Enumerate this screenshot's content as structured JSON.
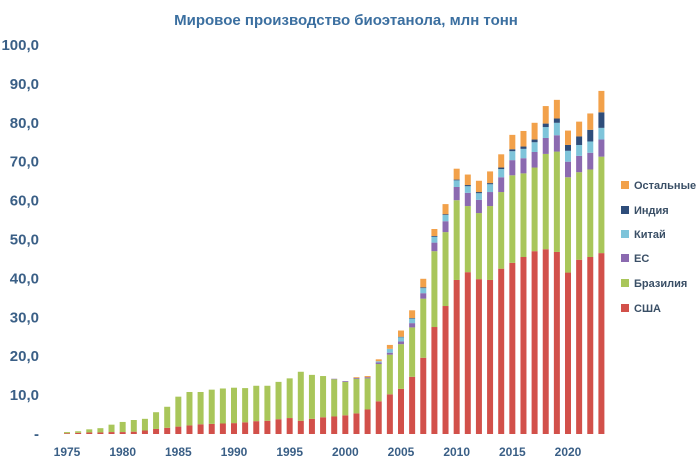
{
  "chart_data": {
    "type": "bar",
    "stacked": true,
    "title": "Мировое производство биоэтанола, млн тонн",
    "xlabel": "",
    "ylabel": "",
    "ylim": [
      0,
      100
    ],
    "ytick_labels": [
      "-",
      "10,0",
      "20,0",
      "30,0",
      "40,0",
      "50,0",
      "60,0",
      "70,0",
      "80,0",
      "90,0",
      "100,0"
    ],
    "ytick_values": [
      0,
      10,
      20,
      30,
      40,
      50,
      60,
      70,
      80,
      90,
      100
    ],
    "xtick_labels": [
      "1975",
      "1980",
      "1985",
      "1990",
      "1995",
      "2000",
      "2005",
      "2010",
      "2015",
      "2020"
    ],
    "xtick_values": [
      1975,
      1980,
      1985,
      1990,
      1995,
      2000,
      2005,
      2010,
      2015,
      2020
    ],
    "legend_position": "right",
    "grid": false,
    "x": [
      1975,
      1976,
      1977,
      1978,
      1979,
      1980,
      1981,
      1982,
      1983,
      1984,
      1985,
      1986,
      1987,
      1988,
      1989,
      1990,
      1991,
      1992,
      1993,
      1994,
      1995,
      1996,
      1997,
      1998,
      1999,
      2000,
      2001,
      2002,
      2003,
      2004,
      2005,
      2006,
      2007,
      2008,
      2009,
      2010,
      2011,
      2012,
      2013,
      2014,
      2015,
      2016,
      2017,
      2018,
      2019,
      2020,
      2021,
      2022,
      2023
    ],
    "series": [
      {
        "name": "США",
        "color": "#d2504a",
        "values": [
          0.2,
          0.3,
          0.4,
          0.4,
          0.5,
          0.5,
          0.6,
          0.9,
          1.3,
          1.6,
          1.9,
          2.2,
          2.5,
          2.6,
          2.7,
          2.8,
          3.0,
          3.3,
          3.4,
          3.8,
          4.1,
          3.4,
          3.9,
          4.3,
          4.5,
          4.8,
          5.3,
          6.3,
          8.4,
          10.2,
          11.6,
          14.7,
          19.6,
          27.5,
          32.9,
          39.6,
          41.6,
          39.8,
          39.6,
          42.5,
          44.0,
          45.5,
          47.0,
          47.5,
          46.8,
          41.5,
          44.8,
          45.5,
          46.5
        ]
      },
      {
        "name": "Бразилия",
        "color": "#a9c65a",
        "values": [
          0.3,
          0.4,
          0.8,
          1.1,
          1.9,
          2.6,
          3.0,
          3.0,
          4.3,
          5.4,
          7.7,
          8.6,
          8.3,
          8.8,
          9.0,
          9.1,
          8.8,
          9.1,
          9.0,
          9.6,
          10.2,
          12.6,
          11.3,
          10.6,
          9.6,
          8.6,
          8.9,
          8.0,
          9.6,
          10.2,
          11.5,
          12.7,
          15.2,
          19.5,
          19.0,
          20.5,
          17.0,
          17.0,
          19.0,
          19.7,
          22.5,
          21.5,
          21.5,
          24.5,
          25.8,
          24.5,
          22.5,
          22.5,
          24.8
        ]
      },
      {
        "name": "ЕС",
        "color": "#8b6ab0",
        "values": [
          0,
          0,
          0,
          0,
          0,
          0,
          0,
          0,
          0,
          0,
          0,
          0,
          0,
          0,
          0,
          0,
          0,
          0,
          0,
          0,
          0,
          0,
          0,
          0,
          0.1,
          0.2,
          0.2,
          0.3,
          0.4,
          0.5,
          0.7,
          1.1,
          1.4,
          2.2,
          2.8,
          3.4,
          3.4,
          3.4,
          3.6,
          3.8,
          3.9,
          3.9,
          4.0,
          4.1,
          4.2,
          4.0,
          4.2,
          4.3,
          4.4
        ]
      },
      {
        "name": "Китай",
        "color": "#7ec4da",
        "values": [
          0,
          0,
          0,
          0,
          0,
          0,
          0,
          0,
          0,
          0,
          0,
          0,
          0,
          0,
          0,
          0,
          0,
          0,
          0,
          0,
          0,
          0,
          0,
          0,
          0,
          0,
          0,
          0,
          0.3,
          1.0,
          1.1,
          1.2,
          1.3,
          1.5,
          1.6,
          1.7,
          1.7,
          1.7,
          2.0,
          2.1,
          2.3,
          2.4,
          2.5,
          2.8,
          3.2,
          2.8,
          2.8,
          2.9,
          3.0
        ]
      },
      {
        "name": "Индия",
        "color": "#2e4d7a",
        "values": [
          0,
          0,
          0,
          0,
          0,
          0,
          0,
          0,
          0,
          0,
          0,
          0,
          0,
          0,
          0,
          0,
          0,
          0,
          0,
          0,
          0,
          0,
          0,
          0,
          0,
          0,
          0,
          0,
          0,
          0,
          0.1,
          0.1,
          0.2,
          0.2,
          0.2,
          0.2,
          0.3,
          0.3,
          0.3,
          0.4,
          0.5,
          0.6,
          0.7,
          0.9,
          1.1,
          1.5,
          2.2,
          3.0,
          4.0
        ]
      },
      {
        "name": "Остальные",
        "color": "#f2a14a",
        "values": [
          0,
          0,
          0,
          0,
          0,
          0,
          0,
          0,
          0,
          0,
          0,
          0,
          0,
          0,
          0,
          0,
          0,
          0,
          0,
          0,
          0,
          0,
          0,
          0,
          0,
          0,
          0.2,
          0.3,
          0.5,
          1.0,
          1.6,
          2.0,
          2.2,
          1.8,
          2.6,
          2.8,
          2.7,
          2.9,
          3.0,
          3.4,
          3.7,
          4.0,
          4.3,
          4.5,
          4.8,
          3.7,
          3.8,
          4.2,
          5.5
        ]
      }
    ]
  }
}
